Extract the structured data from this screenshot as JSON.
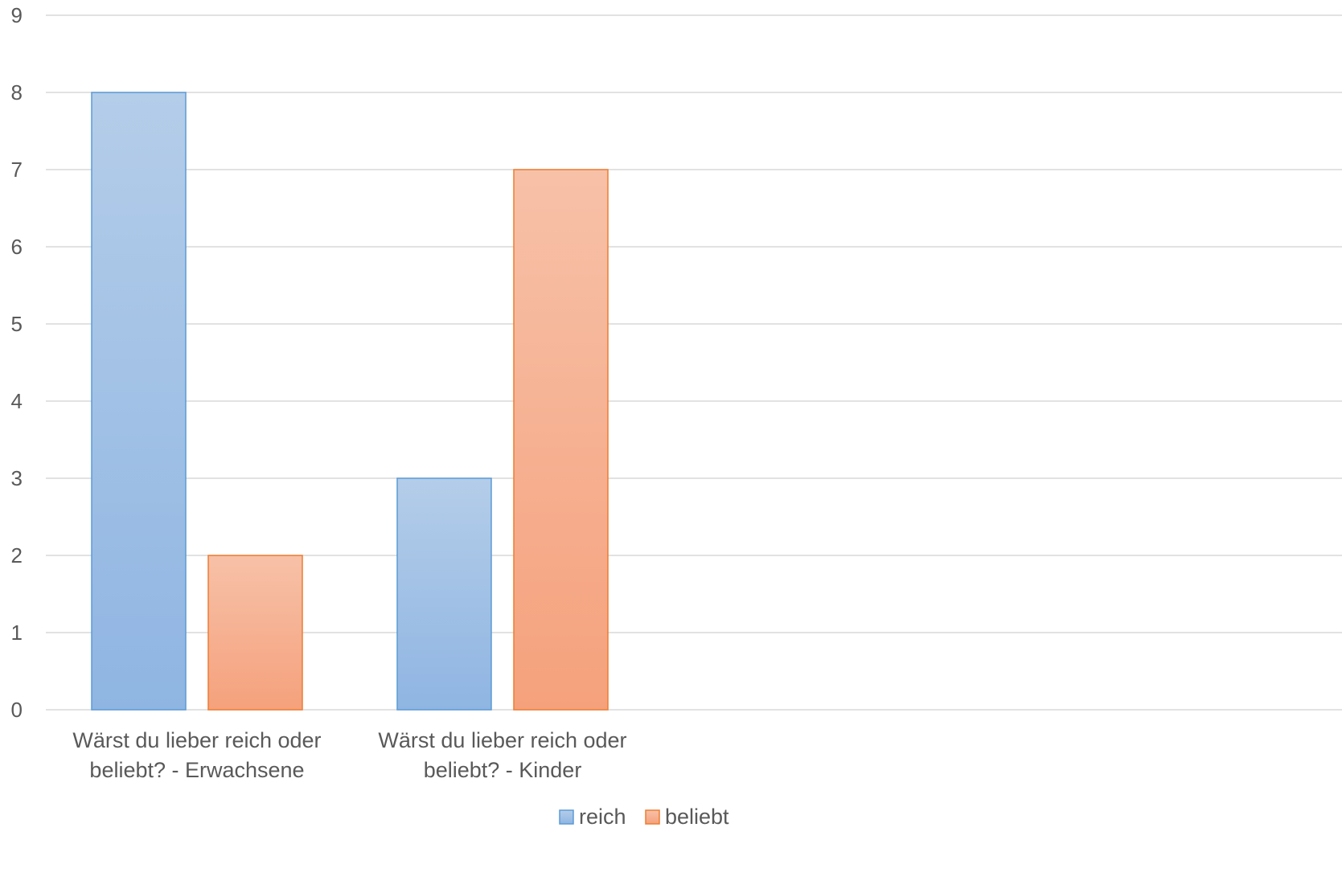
{
  "chart_data": {
    "type": "bar",
    "title": "",
    "xlabel": "",
    "ylabel": "",
    "ylim": [
      0,
      9
    ],
    "yticks": [
      0,
      1,
      2,
      3,
      4,
      5,
      6,
      7,
      8,
      9
    ],
    "grid": true,
    "legend_position": "bottom",
    "categories": [
      [
        "Wärst du lieber reich oder",
        "beliebt? - Erwachsene"
      ],
      [
        "Wärst du lieber reich oder",
        "beliebt? - Kinder"
      ]
    ],
    "series": [
      {
        "name": "reich",
        "values": [
          8,
          3
        ],
        "color": "#5b9bd5"
      },
      {
        "name": "beliebt",
        "values": [
          2,
          7
        ],
        "color": "#ed7d31"
      }
    ]
  }
}
